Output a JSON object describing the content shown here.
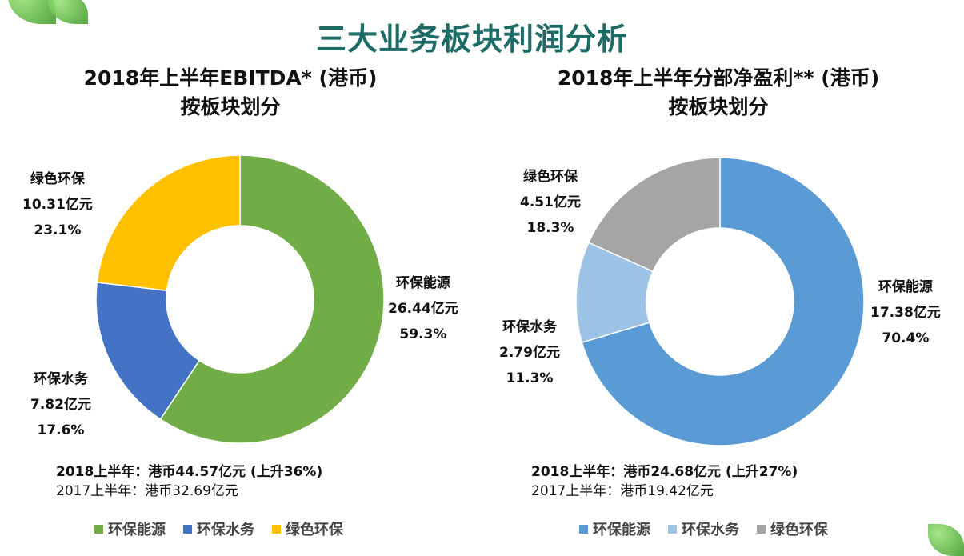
{
  "title": "三大业务板块利润分析",
  "chart_data": [
    {
      "type": "pie",
      "donut": true,
      "title_line1": "2018年上半年EBITDA* (港币)",
      "title_line2": "按板块划分",
      "categories": [
        "环保能源",
        "环保水务",
        "绿色环保"
      ],
      "values": [
        26.44,
        7.82,
        10.31
      ],
      "value_labels": [
        "26.44亿元",
        "7.82亿元",
        "10.31亿元"
      ],
      "percent_labels": [
        "59.3%",
        "17.6%",
        "23.1%"
      ],
      "colors": [
        "#70AD47",
        "#4472C4",
        "#FFC000"
      ],
      "summary_2018": "2018上半年：港币44.57亿元 (上升36%)",
      "summary_2017": "2017上半年：港币32.69亿元",
      "legend": "bottom"
    },
    {
      "type": "pie",
      "donut": true,
      "title_line1": "2018年上半年分部净盈利** (港币)",
      "title_line2": "按板块划分",
      "categories": [
        "环保能源",
        "环保水务",
        "绿色环保"
      ],
      "values": [
        17.38,
        2.79,
        4.51
      ],
      "value_labels": [
        "17.38亿元",
        "2.79亿元",
        "4.51亿元"
      ],
      "percent_labels": [
        "70.4%",
        "11.3%",
        "18.3%"
      ],
      "colors": [
        "#5B9BD5",
        "#9DC3E6",
        "#A5A5A5"
      ],
      "summary_2018": "2018上半年：港币24.68亿元 (上升27%)",
      "summary_2017": "2017上半年：港币19.42亿元",
      "legend": "bottom"
    }
  ]
}
